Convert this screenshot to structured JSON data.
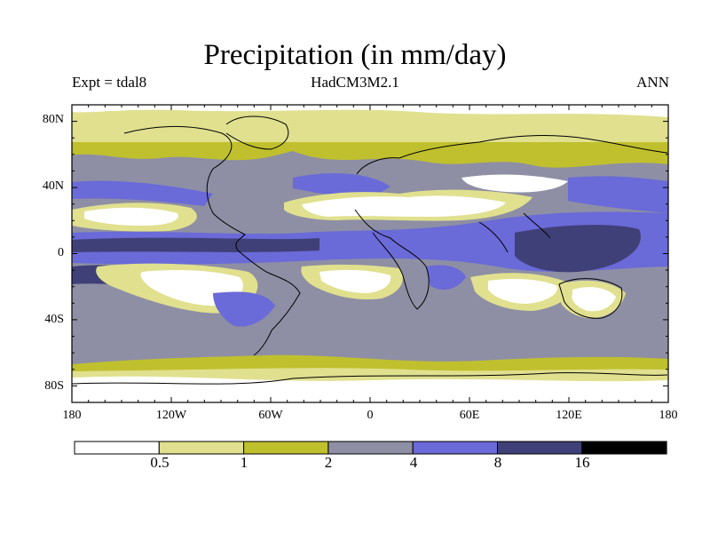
{
  "title": "Precipitation (in mm/day)",
  "experiment": "Expt = tdal8",
  "model": "HadCM3M2.1",
  "period": "ANN",
  "lat_labels": [
    "80N",
    "40N",
    "0",
    "40S",
    "80S"
  ],
  "lon_labels": [
    "180",
    "120W",
    "60W",
    "0",
    "60E",
    "120E",
    "180"
  ],
  "colorbar": {
    "levels": [
      "0.5",
      "1",
      "2",
      "4",
      "8",
      "16"
    ],
    "colors": [
      "#ffffff",
      "#e0e08f",
      "#c0c02e",
      "#8e8fa4",
      "#6a6ad8",
      "#404078",
      "#000000"
    ]
  }
}
